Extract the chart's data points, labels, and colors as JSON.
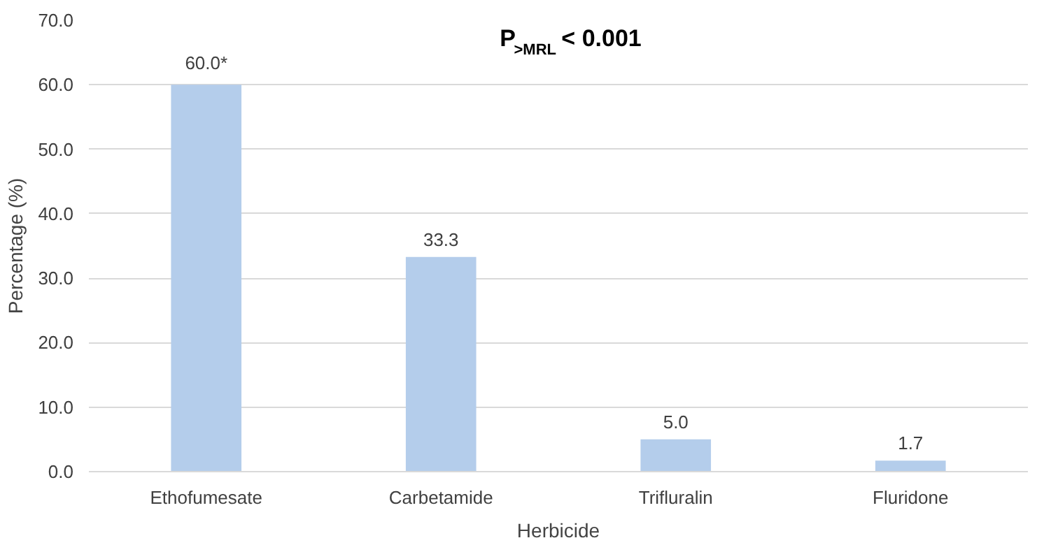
{
  "chart_data": {
    "type": "bar",
    "xlabel": "Herbicide",
    "ylabel": "Percentage (%)",
    "categories": [
      "Ethofumesate",
      "Carbetamide",
      "Trifluralin",
      "Fluridone"
    ],
    "values": [
      60.0,
      33.3,
      5.0,
      1.7
    ],
    "color": "#b4cdeb",
    "value_labels": [
      "60.0*",
      "33.3",
      "5.0",
      "1.7"
    ],
    "ylim": [
      0,
      70
    ],
    "yticks": [
      {
        "value": 0,
        "label": "0.0"
      },
      {
        "value": 10,
        "label": "10.0"
      },
      {
        "value": 20,
        "label": "20.0"
      },
      {
        "value": 30,
        "label": "30.0"
      },
      {
        "value": 40,
        "label": "40.0"
      },
      {
        "value": 50,
        "label": "50.0"
      },
      {
        "value": 60,
        "label": "60.0"
      },
      {
        "value": 70,
        "label": "70.0"
      }
    ],
    "grid": "y",
    "annotations": [
      "P$_{>MRL}$ < 0.001"
    ]
  }
}
